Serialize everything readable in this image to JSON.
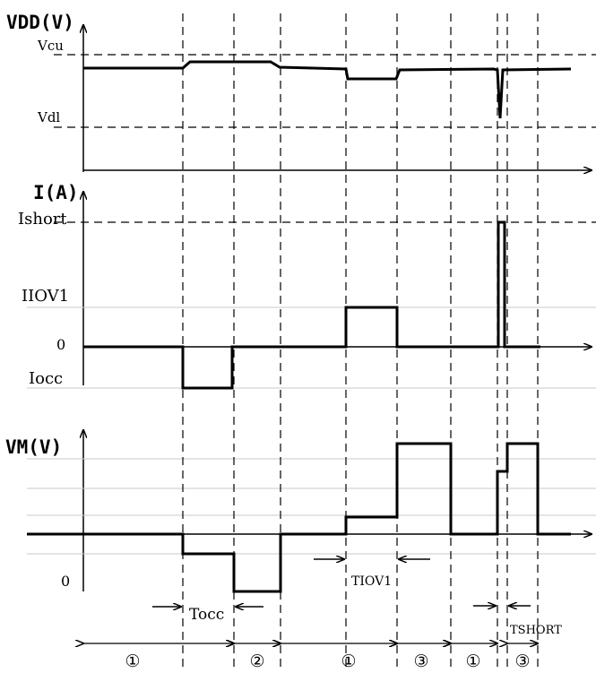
{
  "panels": {
    "vdd": {
      "title": "VDD(V)",
      "levels": {
        "vcu": "Vcu",
        "vdl": "Vdl"
      }
    },
    "current": {
      "title": "I(A)",
      "levels": {
        "ishort": "Ishort",
        "iiov1": "IIOV1",
        "zero": "0",
        "iocc": "Iocc"
      }
    },
    "vm": {
      "title": "VM(V)",
      "levels": {
        "zero": "0"
      }
    }
  },
  "timing_labels": {
    "tocc": "Tocc",
    "tiov1": "TIOV1",
    "tshort": "TSHORT"
  },
  "phases": [
    {
      "label": "①"
    },
    {
      "label": "②"
    },
    {
      "label": "①"
    },
    {
      "label": "③"
    },
    {
      "label": "①"
    },
    {
      "label": "③"
    }
  ],
  "colors": {
    "ink": "#000000",
    "grid": "#c8c8c8",
    "background": "#ffffff"
  }
}
